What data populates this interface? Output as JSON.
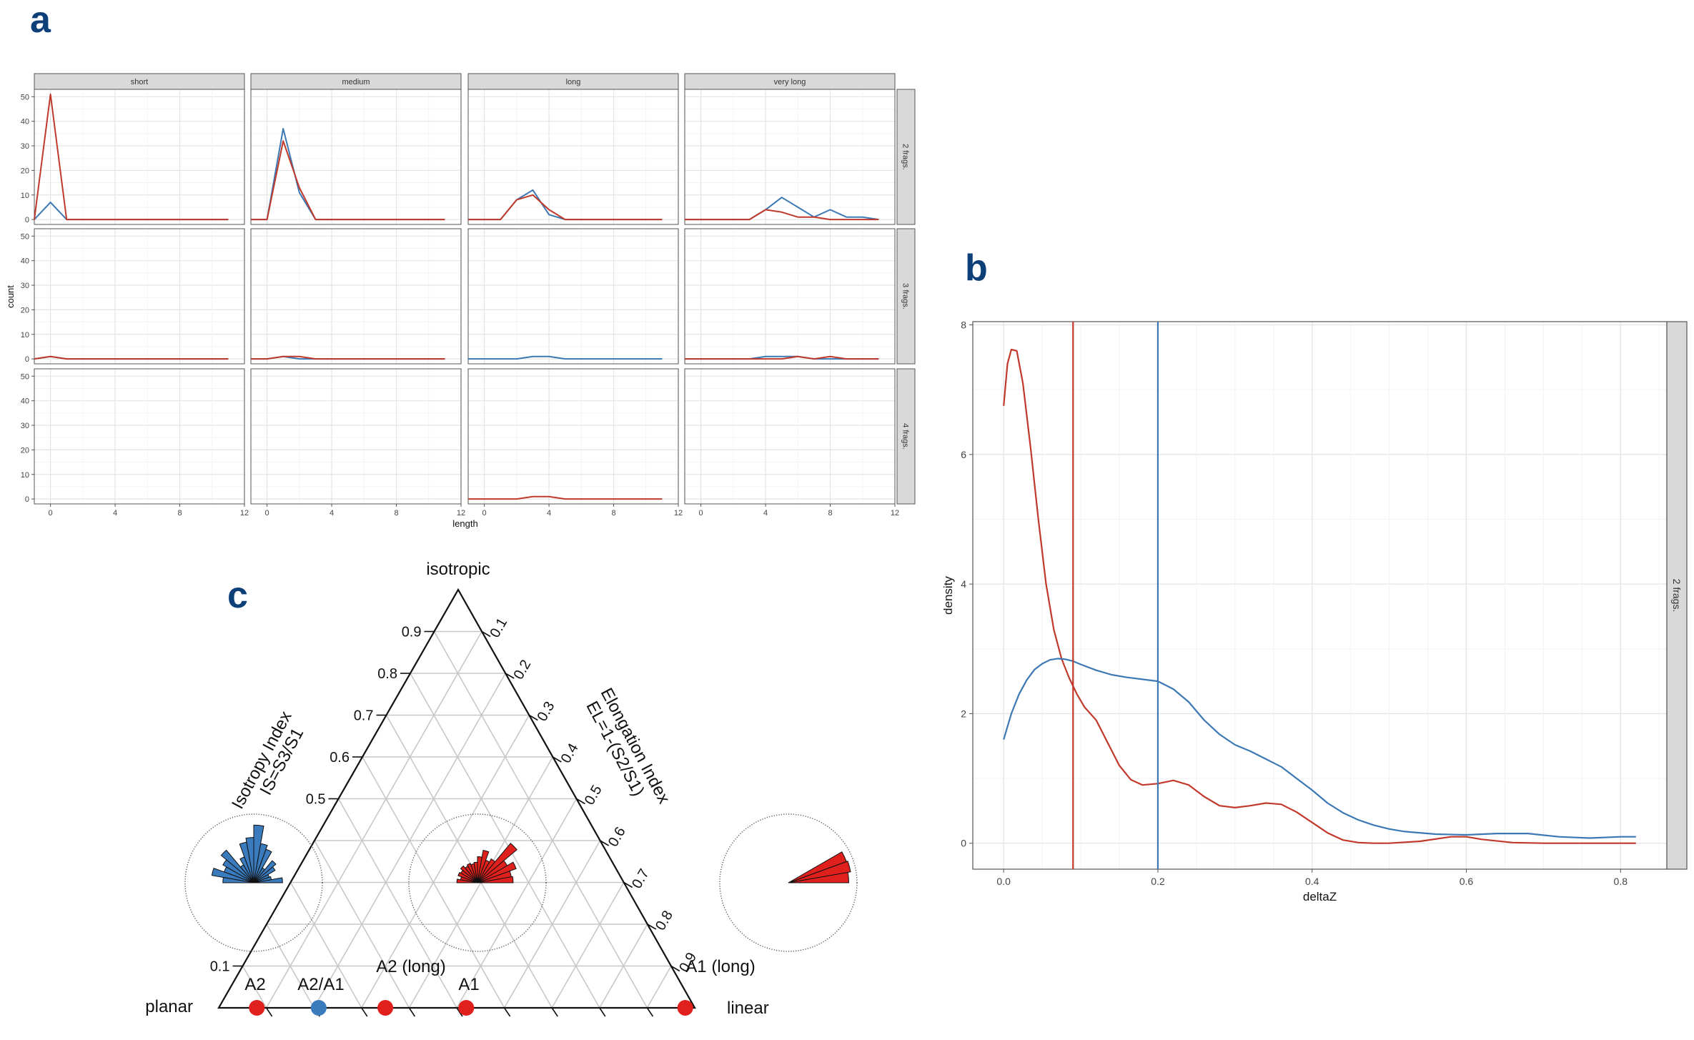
{
  "panel_letters": {
    "a": "a",
    "b": "b",
    "c": "c"
  },
  "colors": {
    "red": "#c0392b",
    "blue": "#3c78b4",
    "rose_red": "#e0201c",
    "rose_blue": "#3a7bbd",
    "navy": "#0d3f78"
  },
  "chart_data": [
    {
      "type": "line",
      "panel": "a",
      "xlabel": "length",
      "ylabel": "count",
      "col_facets": [
        "short",
        "medium",
        "long",
        "very long"
      ],
      "row_facets": [
        "2 frags.",
        "3 frags.",
        "4 frags."
      ],
      "xlim": [
        -1,
        12
      ],
      "ylim": [
        -2,
        53
      ],
      "x_ticks": [
        "0",
        "4",
        "8",
        "12"
      ],
      "y_ticks": [
        "0",
        "10",
        "20",
        "30",
        "40",
        "50"
      ],
      "grid": true,
      "x": [
        -1,
        0,
        1,
        2,
        3,
        4,
        5,
        6,
        7,
        8,
        9,
        10,
        11
      ],
      "panels": [
        {
          "row": 0,
          "col": 0,
          "red": [
            0,
            51,
            0,
            0,
            0,
            0,
            0,
            0,
            0,
            0,
            0,
            0,
            0
          ],
          "blue": [
            0,
            7,
            0,
            0,
            0,
            0,
            0,
            0,
            0,
            0,
            0,
            0,
            0
          ]
        },
        {
          "row": 0,
          "col": 1,
          "red": [
            0,
            0,
            32,
            13,
            0,
            0,
            0,
            0,
            0,
            0,
            0,
            0,
            0
          ],
          "blue": [
            0,
            0,
            37,
            11,
            0,
            0,
            0,
            0,
            0,
            0,
            0,
            0,
            0
          ]
        },
        {
          "row": 0,
          "col": 2,
          "red": [
            0,
            0,
            0,
            8,
            10,
            4,
            0,
            0,
            0,
            0,
            0,
            0,
            0
          ],
          "blue": [
            0,
            0,
            0,
            8,
            12,
            2,
            0,
            0,
            0,
            0,
            0,
            0,
            0
          ]
        },
        {
          "row": 0,
          "col": 3,
          "red": [
            0,
            0,
            0,
            0,
            0,
            4,
            3,
            1,
            1,
            0,
            0,
            0,
            0
          ],
          "blue": [
            0,
            0,
            0,
            0,
            0,
            4,
            9,
            5,
            1,
            4,
            1,
            1,
            0
          ]
        },
        {
          "row": 1,
          "col": 0,
          "red": [
            0,
            1,
            0,
            0,
            0,
            0,
            0,
            0,
            0,
            0,
            0,
            0,
            0
          ],
          "blue": [
            0,
            1,
            0,
            0,
            0,
            0,
            0,
            0,
            0,
            0,
            0,
            0,
            0
          ]
        },
        {
          "row": 1,
          "col": 1,
          "red": [
            0,
            0,
            1,
            1,
            0,
            0,
            0,
            0,
            0,
            0,
            0,
            0,
            0
          ],
          "blue": [
            0,
            0,
            1,
            0,
            0,
            0,
            0,
            0,
            0,
            0,
            0,
            0,
            0
          ]
        },
        {
          "row": 1,
          "col": 2,
          "red": null,
          "blue": [
            0,
            0,
            0,
            0,
            1,
            1,
            0,
            0,
            0,
            0,
            0,
            0,
            0
          ]
        },
        {
          "row": 1,
          "col": 3,
          "red": [
            0,
            0,
            0,
            0,
            0,
            0,
            0,
            1,
            0,
            1,
            0,
            0,
            0
          ],
          "blue": [
            0,
            0,
            0,
            0,
            0,
            1,
            1,
            1,
            0,
            0,
            0,
            0,
            0
          ]
        },
        {
          "row": 2,
          "col": 0,
          "red": null,
          "blue": null
        },
        {
          "row": 2,
          "col": 1,
          "red": null,
          "blue": null
        },
        {
          "row": 2,
          "col": 2,
          "red": [
            0,
            0,
            0,
            0,
            1,
            1,
            0,
            0,
            0,
            0,
            0,
            0,
            0
          ],
          "blue": null
        },
        {
          "row": 2,
          "col": 3,
          "red": null,
          "blue": null
        }
      ]
    },
    {
      "type": "line",
      "panel": "b",
      "xlabel": "deltaZ",
      "ylabel": "density",
      "facet": "2 frags.",
      "xlim": [
        -0.04,
        0.86
      ],
      "ylim": [
        -0.4,
        8.05
      ],
      "x_ticks": [
        "0.0",
        "0.2",
        "0.4",
        "0.6",
        "0.8"
      ],
      "y_ticks": [
        "0",
        "2",
        "4",
        "6",
        "8"
      ],
      "grid": true,
      "vlines": [
        {
          "color": "red",
          "x": 0.09
        },
        {
          "color": "blue",
          "x": 0.2
        }
      ],
      "series": [
        {
          "color": "red",
          "x": [
            0,
            0.005,
            0.01,
            0.017,
            0.025,
            0.035,
            0.045,
            0.055,
            0.065,
            0.075,
            0.085,
            0.095,
            0.105,
            0.12,
            0.135,
            0.15,
            0.165,
            0.18,
            0.2,
            0.22,
            0.24,
            0.26,
            0.28,
            0.3,
            0.32,
            0.34,
            0.36,
            0.38,
            0.4,
            0.42,
            0.44,
            0.46,
            0.48,
            0.5,
            0.54,
            0.58,
            0.6,
            0.62,
            0.66,
            0.7,
            0.76,
            0.82
          ],
          "y": [
            6.75,
            7.4,
            7.62,
            7.6,
            7.1,
            6.1,
            5.0,
            4.0,
            3.3,
            2.85,
            2.55,
            2.3,
            2.1,
            1.9,
            1.55,
            1.2,
            0.98,
            0.9,
            0.92,
            0.97,
            0.9,
            0.72,
            0.58,
            0.55,
            0.58,
            0.62,
            0.6,
            0.48,
            0.32,
            0.16,
            0.05,
            0.01,
            0.0,
            0.0,
            0.03,
            0.1,
            0.1,
            0.06,
            0.01,
            0.0,
            0.0,
            0.0
          ]
        },
        {
          "color": "blue",
          "x": [
            0,
            0.01,
            0.02,
            0.03,
            0.04,
            0.05,
            0.06,
            0.07,
            0.08,
            0.09,
            0.1,
            0.12,
            0.14,
            0.16,
            0.18,
            0.2,
            0.22,
            0.24,
            0.26,
            0.28,
            0.3,
            0.32,
            0.34,
            0.36,
            0.38,
            0.4,
            0.42,
            0.44,
            0.46,
            0.48,
            0.5,
            0.52,
            0.56,
            0.6,
            0.64,
            0.68,
            0.72,
            0.76,
            0.8,
            0.82
          ],
          "y": [
            1.6,
            2.0,
            2.3,
            2.52,
            2.68,
            2.77,
            2.83,
            2.85,
            2.84,
            2.81,
            2.76,
            2.67,
            2.6,
            2.56,
            2.53,
            2.5,
            2.38,
            2.18,
            1.9,
            1.68,
            1.52,
            1.42,
            1.3,
            1.18,
            1.0,
            0.82,
            0.62,
            0.47,
            0.36,
            0.28,
            0.22,
            0.18,
            0.14,
            0.13,
            0.15,
            0.15,
            0.1,
            0.08,
            0.1,
            0.1
          ]
        }
      ]
    }
  ],
  "ternary": {
    "vertex_labels": {
      "top": "isotropic",
      "left": "planar",
      "right": "linear"
    },
    "axis_titles": {
      "left": [
        "Isotropy Index",
        "IS=S3/S1"
      ],
      "right": [
        "Elongation Index",
        "EL=1-(S2/S1)"
      ]
    },
    "left_ticks": [
      {
        "value": 0.1,
        "label": "0.1"
      },
      {
        "value": 0.5,
        "label": "0.5"
      },
      {
        "value": 0.6,
        "label": "0.6"
      },
      {
        "value": 0.7,
        "label": "0.7"
      },
      {
        "value": 0.8,
        "label": "0.8"
      },
      {
        "value": 0.9,
        "label": "0.9"
      }
    ],
    "right_ticks": [
      {
        "value": 0.1,
        "label": "0.1"
      },
      {
        "value": 0.2,
        "label": "0.2"
      },
      {
        "value": 0.3,
        "label": "0.3"
      },
      {
        "value": 0.4,
        "label": "0.4"
      },
      {
        "value": 0.5,
        "label": "0.5"
      },
      {
        "value": 0.6,
        "label": "0.6"
      },
      {
        "value": 0.7,
        "label": "0.7"
      },
      {
        "value": 0.8,
        "label": "0.8"
      },
      {
        "value": 0.9,
        "label": "0.9"
      }
    ],
    "category_labels": [
      "A2",
      "A2/A1",
      "A2 (long)",
      "A1",
      "A1 (long)"
    ],
    "points": [
      {
        "el": 0.08,
        "is": 0.0,
        "color": "red"
      },
      {
        "el": 0.21,
        "is": 0.0,
        "color": "blue"
      },
      {
        "el": 0.35,
        "is": 0.0,
        "color": "red"
      },
      {
        "el": 0.52,
        "is": 0.0,
        "color": "red"
      },
      {
        "el": 0.98,
        "is": 0.0,
        "color": "red"
      }
    ],
    "roses": [
      {
        "color": "blue",
        "petals": [
          {
            "az": 0,
            "len": 0.42
          },
          {
            "az": 10,
            "len": 0.26
          },
          {
            "az": 20,
            "len": 0.24
          },
          {
            "az": 30,
            "len": 0.36
          },
          {
            "az": 40,
            "len": 0.42
          },
          {
            "az": 50,
            "len": 0.25
          },
          {
            "az": 60,
            "len": 0.52
          },
          {
            "az": 70,
            "len": 0.58
          },
          {
            "az": 80,
            "len": 0.84
          },
          {
            "az": 90,
            "len": 0.66
          },
          {
            "az": 100,
            "len": 0.6
          },
          {
            "az": 110,
            "len": 0.4
          },
          {
            "az": 120,
            "len": 0.3
          },
          {
            "az": 130,
            "len": 0.62
          },
          {
            "az": 140,
            "len": 0.52
          },
          {
            "az": 150,
            "len": 0.46
          },
          {
            "az": 160,
            "len": 0.62
          },
          {
            "az": 170,
            "len": 0.45
          }
        ]
      },
      {
        "color": "red",
        "petals": [
          {
            "az": 0,
            "len": 0.52
          },
          {
            "az": 10,
            "len": 0.5
          },
          {
            "az": 20,
            "len": 0.6
          },
          {
            "az": 30,
            "len": 0.5
          },
          {
            "az": 40,
            "len": 0.75
          },
          {
            "az": 50,
            "len": 0.4
          },
          {
            "az": 60,
            "len": 0.35
          },
          {
            "az": 70,
            "len": 0.48
          },
          {
            "az": 80,
            "len": 0.38
          },
          {
            "az": 90,
            "len": 0.3
          },
          {
            "az": 100,
            "len": 0.28
          },
          {
            "az": 110,
            "len": 0.3
          },
          {
            "az": 120,
            "len": 0.28
          },
          {
            "az": 130,
            "len": 0.32
          },
          {
            "az": 140,
            "len": 0.28
          },
          {
            "az": 150,
            "len": 0.3
          },
          {
            "az": 160,
            "len": 0.25
          },
          {
            "az": 170,
            "len": 0.3
          }
        ]
      },
      {
        "color": "red",
        "petals": [
          {
            "az": 0,
            "len": 0.88
          },
          {
            "az": 10,
            "len": 0.92
          },
          {
            "az": 20,
            "len": 0.9
          }
        ]
      }
    ]
  }
}
